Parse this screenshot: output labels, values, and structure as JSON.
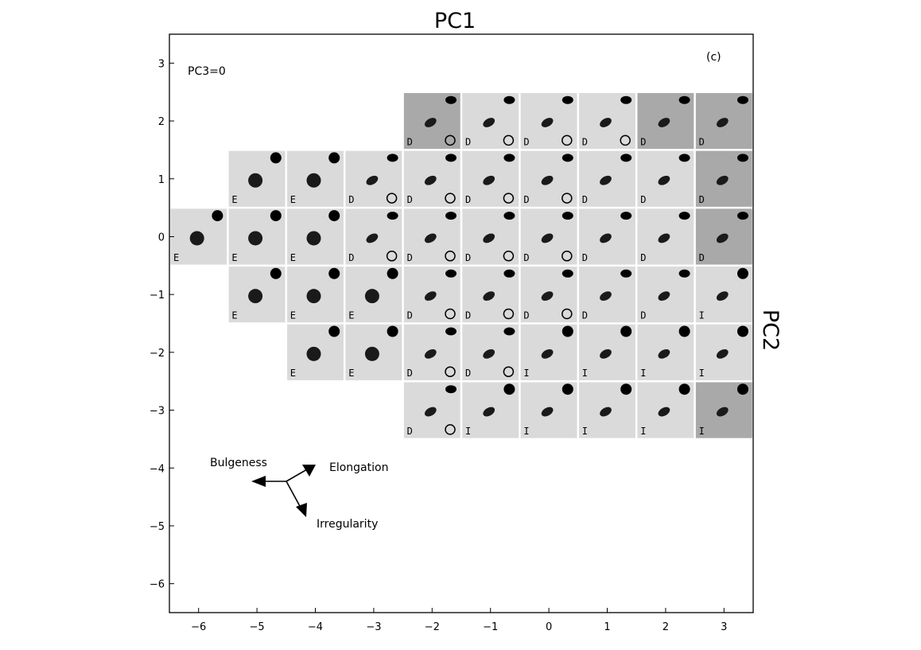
{
  "chart_data": {
    "type": "scatter",
    "title": "PC1",
    "xlabel": "PC1",
    "ylabel": "PC2",
    "panel_label": "(c)",
    "slice_label": "PC3=0",
    "xlim": [
      -6.5,
      3.5
    ],
    "ylim": [
      -6.5,
      3.5
    ],
    "xticks": [
      -6,
      -5,
      -4,
      -3,
      -2,
      -1,
      0,
      1,
      2,
      3
    ],
    "yticks": [
      3,
      2,
      1,
      0,
      -1,
      -2,
      -3,
      -4,
      -5,
      -6
    ],
    "xtick_labels": [
      "−6",
      "−5",
      "−4",
      "−3",
      "−2",
      "−1",
      "0",
      "1",
      "2",
      "3"
    ],
    "ytick_labels": [
      "3",
      "2",
      "1",
      "0",
      "−1",
      "−2",
      "−3",
      "−4",
      "−5",
      "−6"
    ],
    "grid": false,
    "legend": "bottom-left",
    "arrows": {
      "bulgeness": "Bulgeness",
      "elongation": "Elongation",
      "irregularity": "Irregularity"
    },
    "rows": [
      {
        "pc2": 2,
        "cells": [
          {
            "pc1": -2,
            "class": "D",
            "ring": 1,
            "dark": 1
          },
          {
            "pc1": -1,
            "class": "D",
            "ring": 1,
            "dark": 0
          },
          {
            "pc1": 0,
            "class": "D",
            "ring": 1,
            "dark": 0
          },
          {
            "pc1": 1,
            "class": "D",
            "ring": 1,
            "dark": 0
          },
          {
            "pc1": 2,
            "class": "D",
            "ring": 0,
            "dark": 1
          },
          {
            "pc1": 3,
            "class": "D",
            "ring": 0,
            "dark": 1
          }
        ]
      },
      {
        "pc2": 1,
        "cells": [
          {
            "pc1": -5,
            "class": "E",
            "ring": 0,
            "dark": 0
          },
          {
            "pc1": -4,
            "class": "E",
            "ring": 0,
            "dark": 0
          },
          {
            "pc1": -3,
            "class": "D",
            "ring": 1,
            "dark": 0
          },
          {
            "pc1": -2,
            "class": "D",
            "ring": 1,
            "dark": 0
          },
          {
            "pc1": -1,
            "class": "D",
            "ring": 1,
            "dark": 0
          },
          {
            "pc1": 0,
            "class": "D",
            "ring": 1,
            "dark": 0
          },
          {
            "pc1": 1,
            "class": "D",
            "ring": 0,
            "dark": 0
          },
          {
            "pc1": 2,
            "class": "D",
            "ring": 0,
            "dark": 0
          },
          {
            "pc1": 3,
            "class": "D",
            "ring": 0,
            "dark": 1
          }
        ]
      },
      {
        "pc2": 0,
        "cells": [
          {
            "pc1": -6,
            "class": "E",
            "ring": 0,
            "dark": 0
          },
          {
            "pc1": -5,
            "class": "E",
            "ring": 0,
            "dark": 0
          },
          {
            "pc1": -4,
            "class": "E",
            "ring": 0,
            "dark": 0
          },
          {
            "pc1": -3,
            "class": "D",
            "ring": 1,
            "dark": 0
          },
          {
            "pc1": -2,
            "class": "D",
            "ring": 1,
            "dark": 0
          },
          {
            "pc1": -1,
            "class": "D",
            "ring": 1,
            "dark": 0
          },
          {
            "pc1": 0,
            "class": "D",
            "ring": 1,
            "dark": 0
          },
          {
            "pc1": 1,
            "class": "D",
            "ring": 0,
            "dark": 0
          },
          {
            "pc1": 2,
            "class": "D",
            "ring": 0,
            "dark": 0
          },
          {
            "pc1": 3,
            "class": "D",
            "ring": 0,
            "dark": 1
          }
        ]
      },
      {
        "pc2": -1,
        "cells": [
          {
            "pc1": -5,
            "class": "E",
            "ring": 0,
            "dark": 0
          },
          {
            "pc1": -4,
            "class": "E",
            "ring": 0,
            "dark": 0
          },
          {
            "pc1": -3,
            "class": "E",
            "ring": 0,
            "dark": 0
          },
          {
            "pc1": -2,
            "class": "D",
            "ring": 1,
            "dark": 0
          },
          {
            "pc1": -1,
            "class": "D",
            "ring": 1,
            "dark": 0
          },
          {
            "pc1": 0,
            "class": "D",
            "ring": 1,
            "dark": 0
          },
          {
            "pc1": 1,
            "class": "D",
            "ring": 0,
            "dark": 0
          },
          {
            "pc1": 2,
            "class": "D",
            "ring": 0,
            "dark": 0
          },
          {
            "pc1": 3,
            "class": "I",
            "ring": 0,
            "dark": 0
          }
        ]
      },
      {
        "pc2": -2,
        "cells": [
          {
            "pc1": -4,
            "class": "E",
            "ring": 0,
            "dark": 0
          },
          {
            "pc1": -3,
            "class": "E",
            "ring": 0,
            "dark": 0
          },
          {
            "pc1": -2,
            "class": "D",
            "ring": 1,
            "dark": 0
          },
          {
            "pc1": -1,
            "class": "D",
            "ring": 1,
            "dark": 0
          },
          {
            "pc1": 0,
            "class": "I",
            "ring": 0,
            "dark": 0
          },
          {
            "pc1": 1,
            "class": "I",
            "ring": 0,
            "dark": 0
          },
          {
            "pc1": 2,
            "class": "I",
            "ring": 0,
            "dark": 0
          },
          {
            "pc1": 3,
            "class": "I",
            "ring": 0,
            "dark": 0
          }
        ]
      },
      {
        "pc2": -3,
        "cells": [
          {
            "pc1": -2,
            "class": "D",
            "ring": 1,
            "dark": 0
          },
          {
            "pc1": -1,
            "class": "I",
            "ring": 0,
            "dark": 0
          },
          {
            "pc1": 0,
            "class": "I",
            "ring": 0,
            "dark": 0
          },
          {
            "pc1": 1,
            "class": "I",
            "ring": 0,
            "dark": 0
          },
          {
            "pc1": 2,
            "class": "I",
            "ring": 0,
            "dark": 0
          },
          {
            "pc1": 3,
            "class": "I",
            "ring": 0,
            "dark": 1
          }
        ]
      }
    ]
  }
}
